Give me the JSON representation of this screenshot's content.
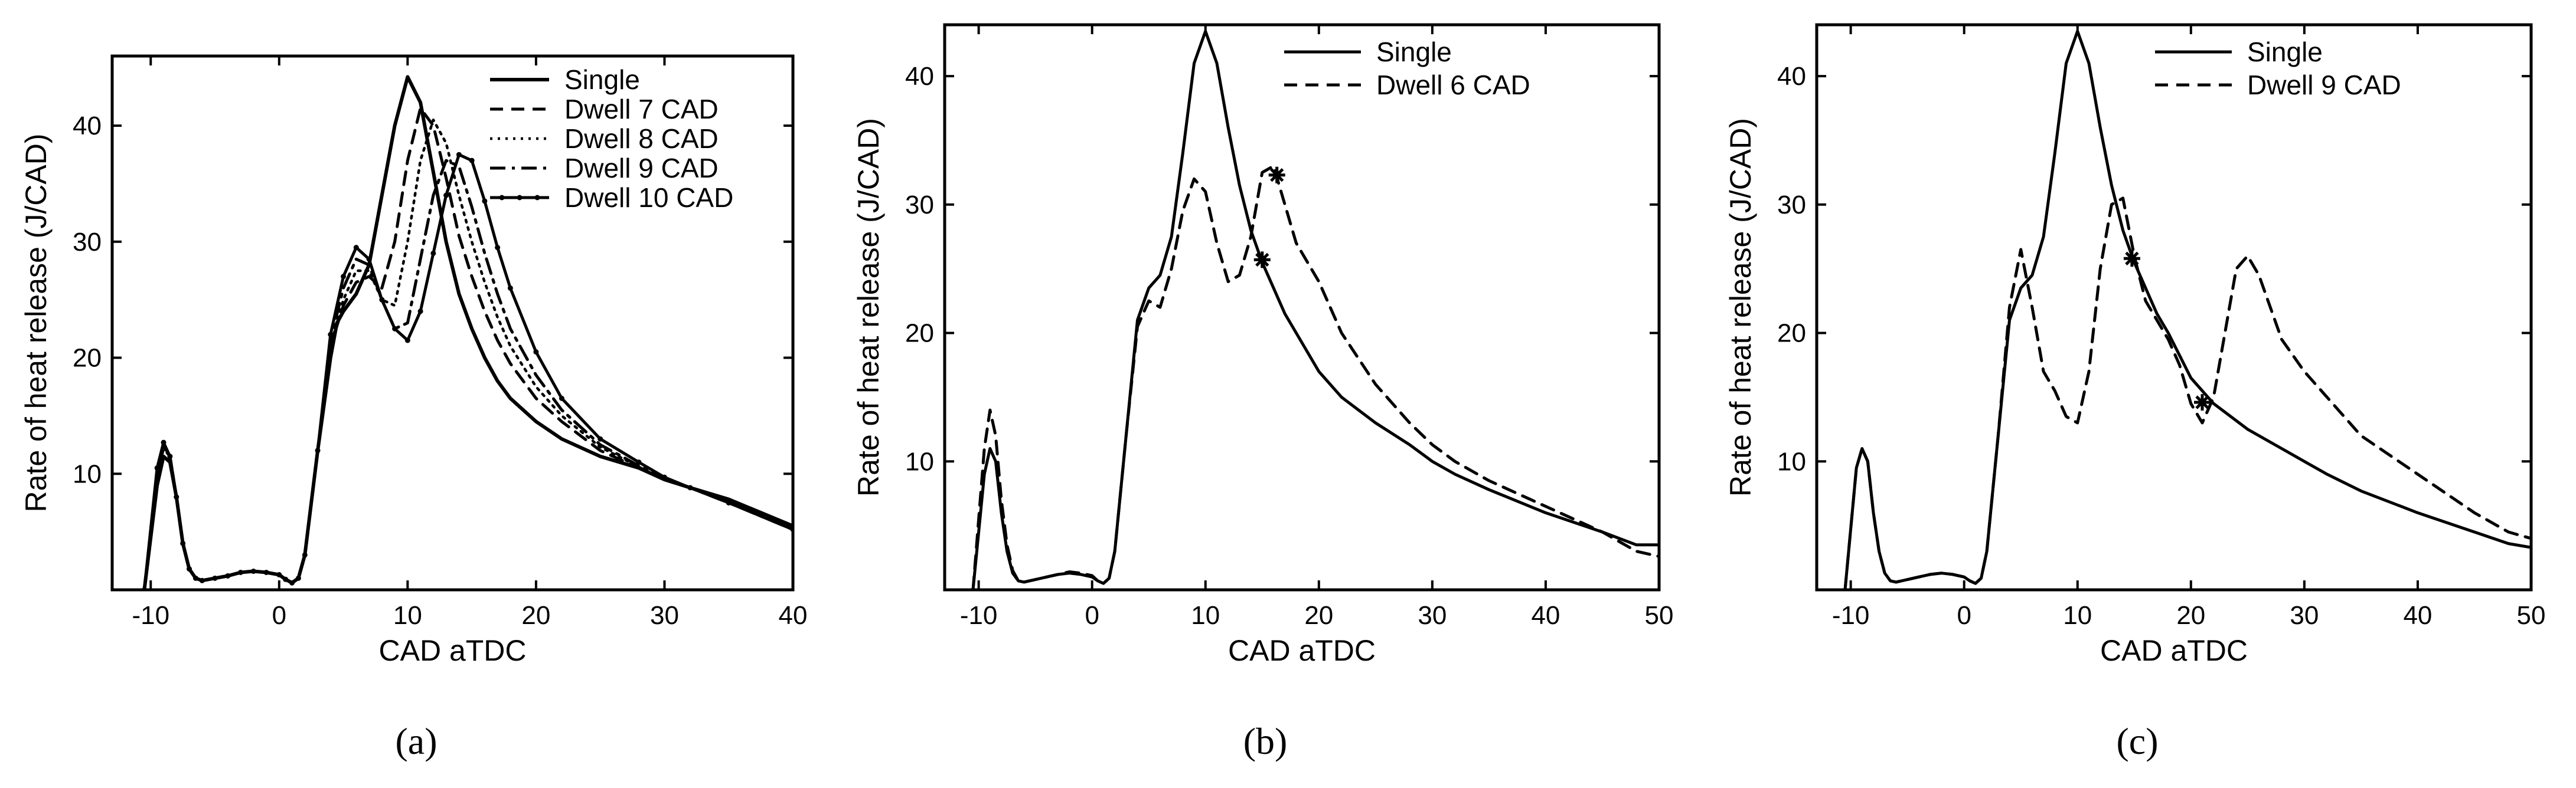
{
  "chart_data": [
    {
      "type": "line",
      "panel_label": "(a)",
      "xlabel": "CAD aTDC",
      "ylabel": "Rate of heat release (J/CAD)",
      "xlim": [
        -13,
        40
      ],
      "ylim": [
        0,
        46
      ],
      "xticks": [
        -10,
        0,
        10,
        20,
        30,
        40
      ],
      "yticks": [
        10,
        20,
        30,
        40
      ],
      "legend": "top-right",
      "series": [
        {
          "name": "Single",
          "style": "solid-thick",
          "x": [
            -10.5,
            -9.5,
            -9,
            -8.5,
            -8,
            -7.5,
            -7,
            -6.5,
            -6,
            -5,
            -4,
            -3,
            -2,
            -1,
            0,
            0.5,
            1,
            1.5,
            2,
            3,
            4,
            4.5,
            5,
            6,
            7,
            8,
            9,
            10,
            11,
            12,
            13,
            14,
            15,
            16,
            17,
            18,
            20,
            22,
            25,
            28,
            30,
            32,
            35,
            40
          ],
          "y": [
            0,
            9,
            11.5,
            11,
            8,
            4,
            1.8,
            1,
            0.8,
            1,
            1.2,
            1.5,
            1.6,
            1.5,
            1.3,
            0.9,
            0.6,
            1,
            3,
            12,
            20,
            23,
            24,
            25.5,
            28,
            34,
            40,
            44.2,
            42,
            36,
            30,
            25.5,
            22.5,
            20,
            18,
            16.5,
            14.5,
            13,
            11.5,
            10.5,
            9.5,
            8.8,
            7.8,
            5.5
          ]
        },
        {
          "name": "Dwell 7 CAD",
          "style": "dashed",
          "x": [
            -10.5,
            -9.5,
            -9,
            -8.5,
            -8,
            -7.5,
            -7,
            -6.5,
            -6,
            -5,
            -4,
            -3,
            -2,
            -1,
            0,
            0.5,
            1,
            1.5,
            2,
            3,
            4,
            5,
            6,
            7,
            8,
            9,
            10,
            11,
            12,
            13,
            14,
            15,
            16,
            17,
            18,
            20,
            22,
            25,
            28,
            30,
            32,
            35,
            40
          ],
          "y": [
            0,
            10,
            12.2,
            11.5,
            8,
            4,
            1.8,
            1,
            0.8,
            1,
            1.2,
            1.5,
            1.6,
            1.5,
            1.3,
            0.9,
            0.6,
            1,
            3,
            12,
            21,
            24.5,
            26.5,
            27,
            26,
            30,
            37,
            41.5,
            40,
            35.5,
            30.5,
            27,
            24,
            21.5,
            19.5,
            16.5,
            14.5,
            12,
            10.5,
            9.5,
            8.8,
            7.5,
            5.3
          ]
        },
        {
          "name": "Dwell 8 CAD",
          "style": "dotted",
          "x": [
            -10.5,
            -9.5,
            -9,
            -8.5,
            -8,
            -7.5,
            -7,
            -6.5,
            -6,
            -5,
            -4,
            -3,
            -2,
            -1,
            0,
            0.5,
            1,
            1.5,
            2,
            3,
            4,
            5,
            6,
            7,
            8,
            9,
            10,
            11,
            12,
            13,
            14,
            15,
            16,
            17,
            18,
            20,
            22,
            25,
            28,
            30,
            32,
            35,
            40
          ],
          "y": [
            0,
            10,
            12.3,
            11.5,
            8,
            4,
            1.8,
            1,
            0.8,
            1,
            1.2,
            1.5,
            1.6,
            1.5,
            1.3,
            0.9,
            0.6,
            1,
            3,
            12,
            21,
            25,
            27.5,
            27.5,
            25,
            24.5,
            30,
            37,
            40.5,
            38.5,
            34,
            30,
            26.5,
            23.5,
            21,
            17.5,
            15,
            12.3,
            10.6,
            9.5,
            8.8,
            7.5,
            5.2
          ]
        },
        {
          "name": "Dwell 9 CAD",
          "style": "dashdot",
          "x": [
            -10.5,
            -9.5,
            -9,
            -8.5,
            -8,
            -7.5,
            -7,
            -6.5,
            -6,
            -5,
            -4,
            -3,
            -2,
            -1,
            0,
            0.5,
            1,
            1.5,
            2,
            3,
            4,
            5,
            6,
            7,
            8,
            9,
            10,
            11,
            12,
            13,
            14,
            15,
            16,
            17,
            18,
            20,
            22,
            25,
            28,
            30,
            32,
            35,
            40
          ],
          "y": [
            0,
            10,
            12.5,
            11.5,
            8,
            4,
            1.8,
            1,
            0.8,
            1,
            1.2,
            1.5,
            1.6,
            1.5,
            1.3,
            0.9,
            0.6,
            1,
            3,
            12,
            21.5,
            26,
            28.5,
            28,
            25,
            22.5,
            23,
            28.5,
            34,
            37,
            36.5,
            33,
            29,
            25.5,
            22.5,
            18.5,
            15.5,
            12.5,
            10.7,
            9.6,
            8.8,
            7.5,
            5.2
          ]
        },
        {
          "name": "Dwell 10 CAD",
          "style": "solid-marker",
          "x": [
            -10.5,
            -9.5,
            -9,
            -8.5,
            -8,
            -7.5,
            -7,
            -6.5,
            -6,
            -5,
            -4,
            -3,
            -2,
            -1,
            0,
            0.5,
            1,
            1.5,
            2,
            3,
            4,
            5,
            6,
            7,
            8,
            9,
            10,
            11,
            12,
            13,
            14,
            15,
            16,
            17,
            18,
            20,
            22,
            25,
            28,
            30,
            32,
            35,
            40
          ],
          "y": [
            0,
            10.5,
            12.7,
            11.5,
            8,
            4,
            1.8,
            1,
            0.8,
            1,
            1.2,
            1.5,
            1.6,
            1.5,
            1.3,
            0.9,
            0.6,
            1,
            3,
            12,
            22,
            27,
            29.5,
            28.5,
            25,
            22.5,
            21.5,
            24,
            29,
            34,
            37.5,
            37,
            33.5,
            29.5,
            26,
            20.5,
            16.5,
            13,
            11,
            9.7,
            8.8,
            7.5,
            5.2
          ]
        }
      ]
    },
    {
      "type": "line",
      "panel_label": "(b)",
      "xlabel": "CAD aTDC",
      "ylabel": "Rate of heat release (J/CAD)",
      "xlim": [
        -13,
        50
      ],
      "ylim": [
        0,
        44
      ],
      "xticks": [
        -10,
        0,
        10,
        20,
        30,
        40,
        50
      ],
      "yticks": [
        10,
        20,
        30,
        40
      ],
      "legend": "top-center",
      "series": [
        {
          "name": "Single",
          "style": "solid",
          "x": [
            -10.5,
            -9.5,
            -9,
            -8.5,
            -8,
            -7.5,
            -7,
            -6.5,
            -6,
            -5,
            -4,
            -3,
            -2,
            -1,
            0,
            0.5,
            1,
            1.5,
            2,
            3,
            4,
            5,
            6,
            7,
            8,
            9,
            10,
            11,
            12,
            13,
            14,
            15,
            16,
            17,
            18,
            20,
            22,
            25,
            28,
            30,
            32,
            35,
            40,
            45,
            48,
            50
          ],
          "y": [
            0,
            9,
            11,
            10,
            6,
            3,
            1.3,
            0.7,
            0.6,
            0.8,
            1,
            1.2,
            1.3,
            1.2,
            1,
            0.7,
            0.5,
            0.9,
            3,
            12,
            21,
            23.5,
            24.5,
            27.5,
            34,
            41,
            43.5,
            41,
            36,
            31.5,
            28,
            25.5,
            23.5,
            21.5,
            20,
            17,
            15,
            13,
            11.3,
            10,
            9,
            7.8,
            6,
            4.5,
            3.5,
            3.5
          ]
        },
        {
          "name": "Dwell 6 CAD",
          "style": "dashed",
          "x": [
            -10.5,
            -9.5,
            -9,
            -8.5,
            -8,
            -7.5,
            -7,
            -6.5,
            -6,
            -5,
            -4,
            -3,
            -2,
            -1,
            0,
            0.5,
            1,
            1.5,
            2,
            3,
            4,
            5,
            6,
            7,
            8,
            9,
            10,
            11,
            12,
            13,
            14,
            15,
            16,
            17,
            18,
            19,
            20,
            22,
            25,
            28,
            30,
            32,
            35,
            40,
            45,
            48,
            50
          ],
          "y": [
            0,
            11,
            14,
            12,
            7,
            3.5,
            1.5,
            0.7,
            0.6,
            0.8,
            1,
            1.2,
            1.4,
            1.3,
            1.1,
            0.7,
            0.5,
            0.9,
            3,
            12,
            20.5,
            22.5,
            22,
            25,
            29.5,
            32,
            31,
            27,
            24,
            24.5,
            27.5,
            32.5,
            33,
            30,
            27,
            25.5,
            24,
            20,
            16,
            13,
            11.3,
            10,
            8.5,
            6.5,
            4.5,
            3,
            2.6
          ]
        }
      ],
      "markers": [
        {
          "x": 15,
          "y": 25.7,
          "symbol": "*"
        },
        {
          "x": 16.3,
          "y": 32.3,
          "symbol": "*"
        }
      ]
    },
    {
      "type": "line",
      "panel_label": "(c)",
      "xlabel": "CAD aTDC",
      "ylabel": "Rate of heat release (J/CAD)",
      "xlim": [
        -13,
        50
      ],
      "ylim": [
        0,
        44
      ],
      "xticks": [
        -10,
        0,
        10,
        20,
        30,
        40,
        50
      ],
      "yticks": [
        10,
        20,
        30,
        40
      ],
      "legend": "top-center",
      "series": [
        {
          "name": "Single",
          "style": "solid",
          "x": [
            -10.5,
            -9.5,
            -9,
            -8.5,
            -8,
            -7.5,
            -7,
            -6.5,
            -6,
            -5,
            -4,
            -3,
            -2,
            -1,
            0,
            0.5,
            1,
            1.5,
            2,
            3,
            4,
            5,
            6,
            7,
            8,
            9,
            10,
            11,
            12,
            13,
            14,
            15,
            16,
            17,
            18,
            20,
            22,
            25,
            28,
            30,
            32,
            35,
            40,
            45,
            48,
            50
          ],
          "y": [
            0,
            9.5,
            11,
            10,
            6,
            3,
            1.3,
            0.7,
            0.6,
            0.8,
            1,
            1.2,
            1.3,
            1.2,
            1,
            0.7,
            0.5,
            0.9,
            3,
            12,
            21,
            23.5,
            24.5,
            27.5,
            34,
            41,
            43.5,
            41,
            36,
            31.5,
            28,
            25.5,
            23.5,
            21.5,
            20,
            16.5,
            14.5,
            12.5,
            11,
            10,
            9,
            7.7,
            6,
            4.5,
            3.6,
            3.3
          ]
        },
        {
          "name": "Dwell 9 CAD",
          "style": "dashed",
          "x": [
            -10.5,
            -9.5,
            -9,
            -8.5,
            -8,
            -7.5,
            -7,
            -6.5,
            -6,
            -5,
            -4,
            -3,
            -2,
            -1,
            0,
            0.5,
            1,
            1.5,
            2,
            3,
            4,
            5,
            6,
            7,
            8,
            9,
            10,
            11,
            12,
            13,
            14,
            15,
            16,
            17,
            18,
            19,
            20,
            21,
            22,
            23,
            24,
            25,
            26,
            28,
            30,
            32,
            35,
            40,
            45,
            48,
            50
          ],
          "y": [
            0,
            9.5,
            11,
            10,
            6,
            3,
            1.3,
            0.7,
            0.6,
            0.8,
            1,
            1.2,
            1.3,
            1.2,
            1,
            0.7,
            0.5,
            0.9,
            3,
            12,
            22,
            26.5,
            22,
            17,
            15.5,
            13.5,
            13,
            17,
            25,
            30,
            30.5,
            26,
            22.5,
            21,
            19.5,
            17.5,
            14.5,
            13,
            15,
            20,
            25,
            26,
            24.5,
            19.5,
            17,
            15,
            12,
            9,
            6,
            4.5,
            4
          ]
        }
      ],
      "markers": [
        {
          "x": 14.8,
          "y": 25.8,
          "symbol": "*"
        },
        {
          "x": 21,
          "y": 14.6,
          "symbol": "*"
        }
      ]
    }
  ]
}
